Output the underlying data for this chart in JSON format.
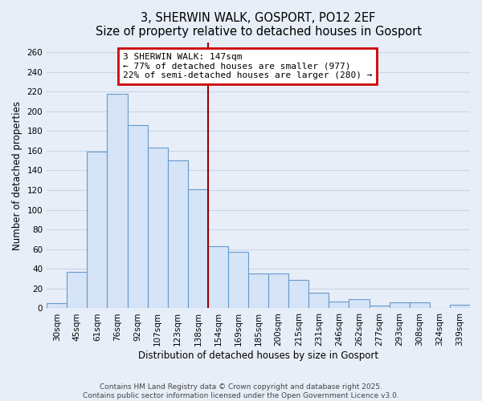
{
  "title": "3, SHERWIN WALK, GOSPORT, PO12 2EF",
  "subtitle": "Size of property relative to detached houses in Gosport",
  "xlabel": "Distribution of detached houses by size in Gosport",
  "ylabel": "Number of detached properties",
  "bar_labels": [
    "30sqm",
    "45sqm",
    "61sqm",
    "76sqm",
    "92sqm",
    "107sqm",
    "123sqm",
    "138sqm",
    "154sqm",
    "169sqm",
    "185sqm",
    "200sqm",
    "215sqm",
    "231sqm",
    "246sqm",
    "262sqm",
    "277sqm",
    "293sqm",
    "308sqm",
    "324sqm",
    "339sqm"
  ],
  "bar_values": [
    5,
    37,
    159,
    218,
    186,
    163,
    150,
    121,
    63,
    57,
    35,
    35,
    29,
    16,
    7,
    9,
    3,
    6,
    6,
    0,
    4
  ],
  "bar_color": "#d6e4f7",
  "bar_edge_color": "#6699cc",
  "vline_x_index": 7.5,
  "vline_color": "#990000",
  "annotation_line1": "3 SHERWIN WALK: 147sqm",
  "annotation_line2": "← 77% of detached houses are smaller (977)",
  "annotation_line3": "22% of semi-detached houses are larger (280) →",
  "annotation_box_facecolor": "#ffffff",
  "annotation_box_edgecolor": "#cc0000",
  "ylim": [
    0,
    270
  ],
  "yticks": [
    0,
    20,
    40,
    60,
    80,
    100,
    120,
    140,
    160,
    180,
    200,
    220,
    240,
    260
  ],
  "footer1": "Contains HM Land Registry data © Crown copyright and database right 2025.",
  "footer2": "Contains public sector information licensed under the Open Government Licence v3.0.",
  "bg_color": "#e8eef8",
  "plot_bg_color": "#e8eef8",
  "grid_color": "#c8d4e8",
  "title_fontsize": 10.5,
  "axis_label_fontsize": 8.5,
  "tick_fontsize": 7.5,
  "annotation_fontsize": 8,
  "footer_fontsize": 6.5
}
